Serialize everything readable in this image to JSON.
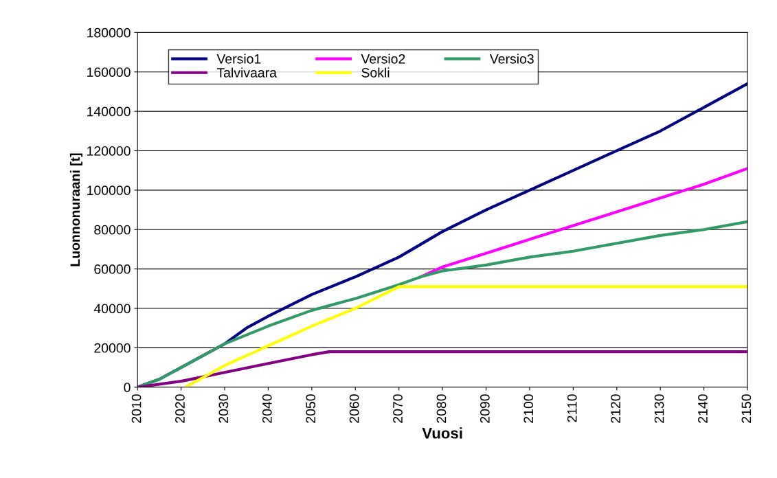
{
  "chart_data": {
    "type": "line",
    "xlabel": "Vuosi",
    "ylabel": "Luonnonuraani [t]",
    "xlim": [
      2010,
      2150
    ],
    "xticks": [
      2010,
      2020,
      2030,
      2040,
      2050,
      2060,
      2070,
      2080,
      2090,
      2100,
      2110,
      2120,
      2130,
      2140,
      2150
    ],
    "ylim": [
      0,
      180000
    ],
    "yticks": [
      0,
      20000,
      40000,
      60000,
      80000,
      100000,
      120000,
      140000,
      160000,
      180000
    ],
    "grid": "y",
    "legend": "top left",
    "marker": "none",
    "line_style": "solid",
    "series": [
      {
        "name": "Versio1",
        "color": "#000080",
        "x": [
          2010,
          2015,
          2020,
          2025,
          2030,
          2035,
          2040,
          2050,
          2060,
          2070,
          2080,
          2090,
          2100,
          2110,
          2120,
          2130,
          2140,
          2150
        ],
        "values": [
          0,
          4000,
          10000,
          16000,
          22000,
          30000,
          36000,
          47000,
          56000,
          66000,
          79000,
          90000,
          100000,
          110000,
          120000,
          130000,
          142000,
          154000
        ]
      },
      {
        "name": "Versio2",
        "color": "#ff00ff",
        "x": [
          2075,
          2080,
          2090,
          2100,
          2110,
          2120,
          2130,
          2140,
          2150
        ],
        "values": [
          56000,
          61000,
          68000,
          75000,
          82000,
          89000,
          96000,
          103000,
          111000
        ]
      },
      {
        "name": "Versio3",
        "color": "#339966",
        "x": [
          2010,
          2015,
          2020,
          2030,
          2040,
          2050,
          2060,
          2070,
          2075,
          2080,
          2090,
          2100,
          2110,
          2120,
          2130,
          2140,
          2150
        ],
        "values": [
          0,
          4000,
          10000,
          22000,
          31000,
          39000,
          45000,
          52000,
          56000,
          59000,
          62000,
          66000,
          69000,
          73000,
          77000,
          80000,
          84000
        ]
      },
      {
        "name": "Talvivaara",
        "color": "#800080",
        "x": [
          2010,
          2020,
          2030,
          2040,
          2050,
          2054,
          2150
        ],
        "values": [
          0,
          3000,
          7500,
          12000,
          16500,
          18000,
          18000
        ]
      },
      {
        "name": "Sokli",
        "color": "#ffff00",
        "x": [
          2021,
          2030,
          2040,
          2050,
          2060,
          2070,
          2150
        ],
        "values": [
          0,
          11000,
          21000,
          31000,
          40000,
          51000,
          51000
        ]
      }
    ]
  }
}
